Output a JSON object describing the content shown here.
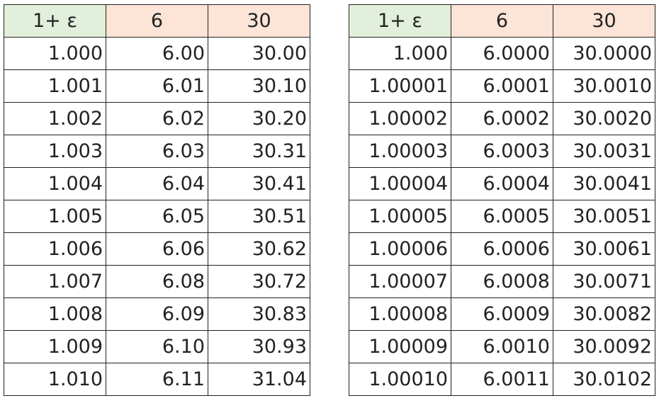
{
  "left_table": {
    "headers": [
      "1+ ε",
      "6",
      "30"
    ],
    "rows": [
      [
        "1.000",
        "6.00",
        "30.00"
      ],
      [
        "1.001",
        "6.01",
        "30.10"
      ],
      [
        "1.002",
        "6.02",
        "30.20"
      ],
      [
        "1.003",
        "6.03",
        "30.31"
      ],
      [
        "1.004",
        "6.04",
        "30.41"
      ],
      [
        "1.005",
        "6.05",
        "30.51"
      ],
      [
        "1.006",
        "6.06",
        "30.62"
      ],
      [
        "1.007",
        "6.08",
        "30.72"
      ],
      [
        "1.008",
        "6.09",
        "30.83"
      ],
      [
        "1.009",
        "6.10",
        "30.93"
      ],
      [
        "1.010",
        "6.11",
        "31.04"
      ]
    ]
  },
  "right_table": {
    "headers": [
      "1+ ε",
      "6",
      "30"
    ],
    "rows": [
      [
        "1.000",
        "6.0000",
        "30.0000"
      ],
      [
        "1.00001",
        "6.0001",
        "30.0010"
      ],
      [
        "1.00002",
        "6.0002",
        "30.0020"
      ],
      [
        "1.00003",
        "6.0003",
        "30.0031"
      ],
      [
        "1.00004",
        "6.0004",
        "30.0041"
      ],
      [
        "1.00005",
        "6.0005",
        "30.0051"
      ],
      [
        "1.00006",
        "6.0006",
        "30.0061"
      ],
      [
        "1.00007",
        "6.0008",
        "30.0071"
      ],
      [
        "1.00008",
        "6.0009",
        "30.0082"
      ],
      [
        "1.00009",
        "6.0010",
        "30.0092"
      ],
      [
        "1.00010",
        "6.0011",
        "30.0102"
      ]
    ]
  },
  "colors": {
    "header_green": "#e2efda",
    "header_peach": "#fce4d6",
    "border": "#222222",
    "text": "#222222"
  }
}
